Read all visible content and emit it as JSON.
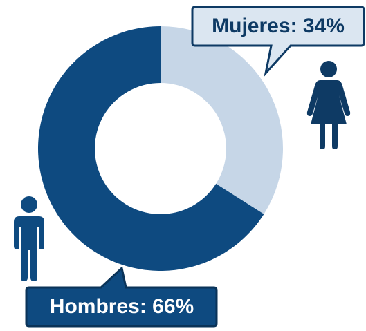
{
  "chart_data": {
    "type": "donut",
    "categories": [
      "Mujeres",
      "Hombres"
    ],
    "values": [
      34,
      66
    ],
    "value_labels": [
      "Mujeres: 34%",
      "Hombres: 66%"
    ],
    "colors": [
      "#c6d6e7",
      "#0e4a80"
    ]
  }
}
